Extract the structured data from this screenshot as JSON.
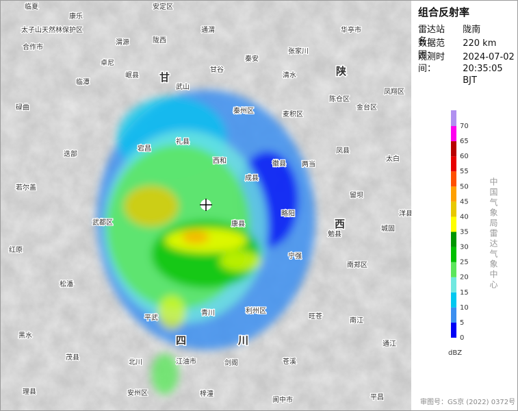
{
  "panel": {
    "title": "组合反射率",
    "info": [
      {
        "label": "雷达站名：",
        "value": "陇南"
      },
      {
        "label": "数据范围：",
        "value": "220 km"
      },
      {
        "label": "观测时间：",
        "value": "2024-07-02 20:35:05 BJT"
      }
    ]
  },
  "legend": {
    "ticks": [
      0,
      5,
      10,
      15,
      20,
      25,
      30,
      35,
      40,
      45,
      50,
      55,
      60,
      65,
      70
    ],
    "colors": [
      "#0000f6",
      "#3c8ff0",
      "#01c8f0",
      "#70e8e0",
      "#5ce65c",
      "#00c000",
      "#009600",
      "#ffff00",
      "#e8c800",
      "#ffa000",
      "#ff5000",
      "#e80000",
      "#b80000",
      "#ff00f0",
      "#a040e0",
      "#b090f0"
    ],
    "unit": "dBZ"
  },
  "credit": "中国气象局雷达气象中心",
  "footer": "审图号：GS京 (2022) 0372号",
  "map": {
    "places": [
      "临夏",
      "康乐",
      "太子山天然林保护区",
      "合作市",
      "渭源",
      "陇西",
      "安定区",
      "通渭",
      "秦安",
      "张家川",
      "华亭市",
      "卓尼",
      "临潭",
      "岷县",
      "武山",
      "甘谷",
      "秦州区",
      "麦积区",
      "清水",
      "陈仓区",
      "金台区",
      "凤翔区",
      "碌曲",
      "迭部",
      "宕昌",
      "礼县",
      "西和",
      "成县",
      "徽县",
      "两当",
      "凤县",
      "太白",
      "留坝",
      "若尔盖",
      "武都区",
      "康县",
      "略阳",
      "勉县",
      "城固",
      "洋县",
      "宁强",
      "南郑区",
      "红原",
      "松潘",
      "平武",
      "青川",
      "利州区",
      "旺苍",
      "南江",
      "黑水",
      "茂县",
      "北川",
      "江油市",
      "剑阁",
      "苍溪",
      "通江",
      "理县",
      "安州区",
      "梓潼",
      "阆中市",
      "平昌",
      "甘",
      "陕",
      "西",
      "四",
      "川"
    ]
  }
}
